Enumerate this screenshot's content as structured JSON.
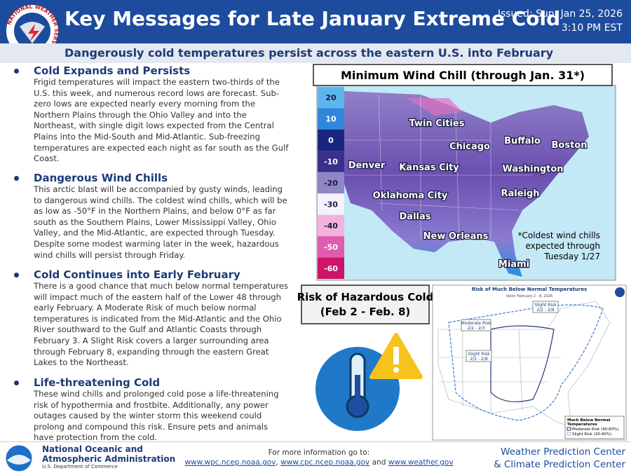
{
  "header": {
    "logo_text": "NATIONAL WEATHER SERVICE",
    "title": "Key Messages for Late January Extreme Cold",
    "issued": [
      "Issued: Sun, Jan 25, 2026",
      "3:10 PM EST"
    ],
    "subtitle": "Dangerously cold temperatures persist across the eastern U.S. into February"
  },
  "sections": [
    {
      "heading": "Cold Expands and Persists",
      "body": "Frigid temperatures will impact the eastern two-thirds of the U.S. this week, and numerous record lows are forecast. Sub-zero lows are expected nearly every morning from the Northern Plains through the Ohio Valley and into the Northeast, with single digit lows expected from the Central Plains into the Mid-South and Mid-Atlantic. Sub-freezing temperatures are expected each night as far south as the Gulf Coast."
    },
    {
      "heading": "Dangerous Wind Chills",
      "body": "This arctic blast will be accompanied by gusty winds, leading to dangerous wind chills. The coldest wind chills, which will be as low as -50°F in the Northern Plains, and below 0°F as far south as the Southern Plains, Lower Mississippi Valley, Ohio Valley, and the Mid-Atlantic, are expected through Tuesday. Despite some modest warming later in the week, hazardous wind chills will persist through Friday."
    },
    {
      "heading": "Cold Continues into Early February",
      "body": "There is a good chance that much below normal temperatures will impact much of the eastern half of the Lower 48 through early February. A Moderate Risk of much below normal temperatures is indicated from the Mid-Atlantic and the Ohio River southward to the Gulf and Atlantic Coasts through February 3. A Slight Risk covers a larger surrounding area through February 8, expanding through the eastern Great Lakes to the Northeast."
    },
    {
      "heading": "Life-threatening Cold",
      "body": "These wind chills and prolonged cold pose a life-threatening risk of hypothermia and frostbite. Additionally, any power outages caused by the winter storm this weekend could prolong and compound this risk. Ensure pets and animals have protection from the cold."
    }
  ],
  "wind_chill_map": {
    "title": "Minimum Wind Chill (through Jan. 31*)",
    "legend": [
      20,
      10,
      0,
      -10,
      -20,
      -30,
      -40,
      -50,
      -60
    ],
    "legend_colors": [
      "#5cb6ee",
      "#2f86dc",
      "#1a2580",
      "#3b2f8c",
      "#8f86c4",
      "#f4f2fb",
      "#f1b3dd",
      "#e05cb0",
      "#cc1468"
    ],
    "cities": [
      "Twin Cities",
      "Chicago",
      "Buffalo",
      "Boston",
      "Denver",
      "Kansas City",
      "Washington",
      "Oklahoma City",
      "Raleigh",
      "Dallas",
      "New Orleans",
      "Miami"
    ],
    "note": [
      "*Coldest wind chills",
      "expected through",
      "Tuesday 1/27"
    ]
  },
  "risk": {
    "label": [
      "Risk of Hazardous Cold",
      "(Feb 2 - Feb. 8)"
    ],
    "map_title": "Risk of Much Below Normal Temperatures",
    "map_valid": "Valid: February 2 - 8, 2026",
    "areas": [
      [
        "Slight Risk",
        "2/2 - 2/8"
      ],
      [
        "Moderate Risk",
        "2/2 - 2/3"
      ],
      [
        "Slight Risk",
        "2/2 - 2/8"
      ]
    ],
    "legend_title": [
      "Much Below Normal",
      "Temperatures"
    ],
    "legend": [
      "Moderate Risk (40-60%)",
      "Slight Risk (20-40%)"
    ]
  },
  "footer": {
    "org": [
      "National Oceanic and",
      "Atmospheric Administration"
    ],
    "dept": "U.S. Department of Commerce",
    "info": "For more information go to:",
    "links": [
      "www.wpc.ncep.noaa.gov",
      "www.cpc.ncep.noaa.gov",
      "www.weather.gov"
    ],
    "joiners": [
      ", ",
      " and "
    ],
    "centers": [
      "Weather Prediction Center",
      "& Climate Prediction Center"
    ]
  }
}
